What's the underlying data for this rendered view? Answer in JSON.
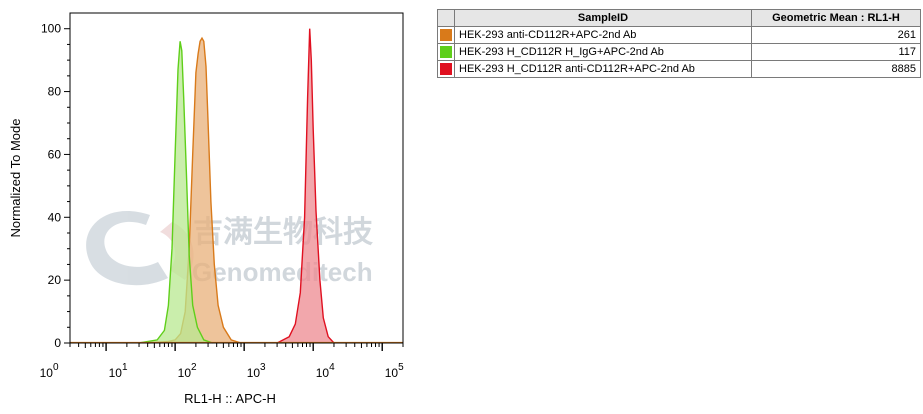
{
  "chart_data": {
    "type": "area",
    "xlabel": "RL1-H :: APC-H",
    "ylabel": "Normalized To Mode",
    "x_scale": "log",
    "xlim": [
      3,
      200000
    ],
    "ylim": [
      0,
      105
    ],
    "y_ticks": [
      0,
      20,
      40,
      60,
      80,
      100
    ],
    "x_ticks": [
      {
        "base": "10",
        "exp": "0",
        "value": 1
      },
      {
        "base": "10",
        "exp": "1",
        "value": 10
      },
      {
        "base": "10",
        "exp": "2",
        "value": 100
      },
      {
        "base": "10",
        "exp": "3",
        "value": 1000
      },
      {
        "base": "10",
        "exp": "4",
        "value": 10000
      },
      {
        "base": "10",
        "exp": "5",
        "value": 100000
      }
    ],
    "grid": false,
    "series": [
      {
        "name": "HEK-293 anti-CD112R+APC-2nd Ab",
        "color": "#d97a1a",
        "fill": "#e8b07a",
        "geometric_mean": "261",
        "points": [
          [
            40,
            0
          ],
          [
            80,
            0.5
          ],
          [
            100,
            1
          ],
          [
            120,
            3
          ],
          [
            140,
            10
          ],
          [
            160,
            30
          ],
          [
            180,
            60
          ],
          [
            200,
            86
          ],
          [
            215,
            92
          ],
          [
            230,
            96
          ],
          [
            245,
            97
          ],
          [
            260,
            96
          ],
          [
            280,
            88
          ],
          [
            300,
            70
          ],
          [
            330,
            45
          ],
          [
            370,
            25
          ],
          [
            420,
            12
          ],
          [
            500,
            5
          ],
          [
            650,
            1
          ],
          [
            900,
            0
          ]
        ]
      },
      {
        "name": "HEK-293 H_CD112R H_IgG+APC-2nd Ab",
        "color": "#5fcf1a",
        "fill": "#b8e890",
        "geometric_mean": "117",
        "points": [
          [
            30,
            0
          ],
          [
            55,
            1
          ],
          [
            70,
            4
          ],
          [
            80,
            12
          ],
          [
            90,
            30
          ],
          [
            100,
            60
          ],
          [
            110,
            87
          ],
          [
            118,
            96
          ],
          [
            125,
            93
          ],
          [
            133,
            78
          ],
          [
            145,
            55
          ],
          [
            160,
            28
          ],
          [
            180,
            12
          ],
          [
            210,
            5
          ],
          [
            260,
            1
          ],
          [
            350,
            0
          ]
        ]
      },
      {
        "name": "HEK-293 H_CD112R anti-CD112R+APC-2nd Ab",
        "color": "#e01020",
        "fill": "#ee8a90",
        "geometric_mean": "8885",
        "points": [
          [
            3000,
            0
          ],
          [
            4500,
            2
          ],
          [
            5500,
            6
          ],
          [
            6500,
            16
          ],
          [
            7500,
            40
          ],
          [
            8300,
            78
          ],
          [
            8900,
            100
          ],
          [
            9400,
            90
          ],
          [
            10000,
            68
          ],
          [
            11000,
            42
          ],
          [
            12500,
            20
          ],
          [
            14000,
            8
          ],
          [
            16500,
            2
          ],
          [
            20000,
            0
          ]
        ]
      }
    ]
  },
  "legend_table": {
    "headers": {
      "sample": "SampleID",
      "value": "Geometric Mean : RL1-H"
    }
  },
  "watermark": {
    "cn": "吉满生物科技",
    "en": "Genomeditech"
  }
}
